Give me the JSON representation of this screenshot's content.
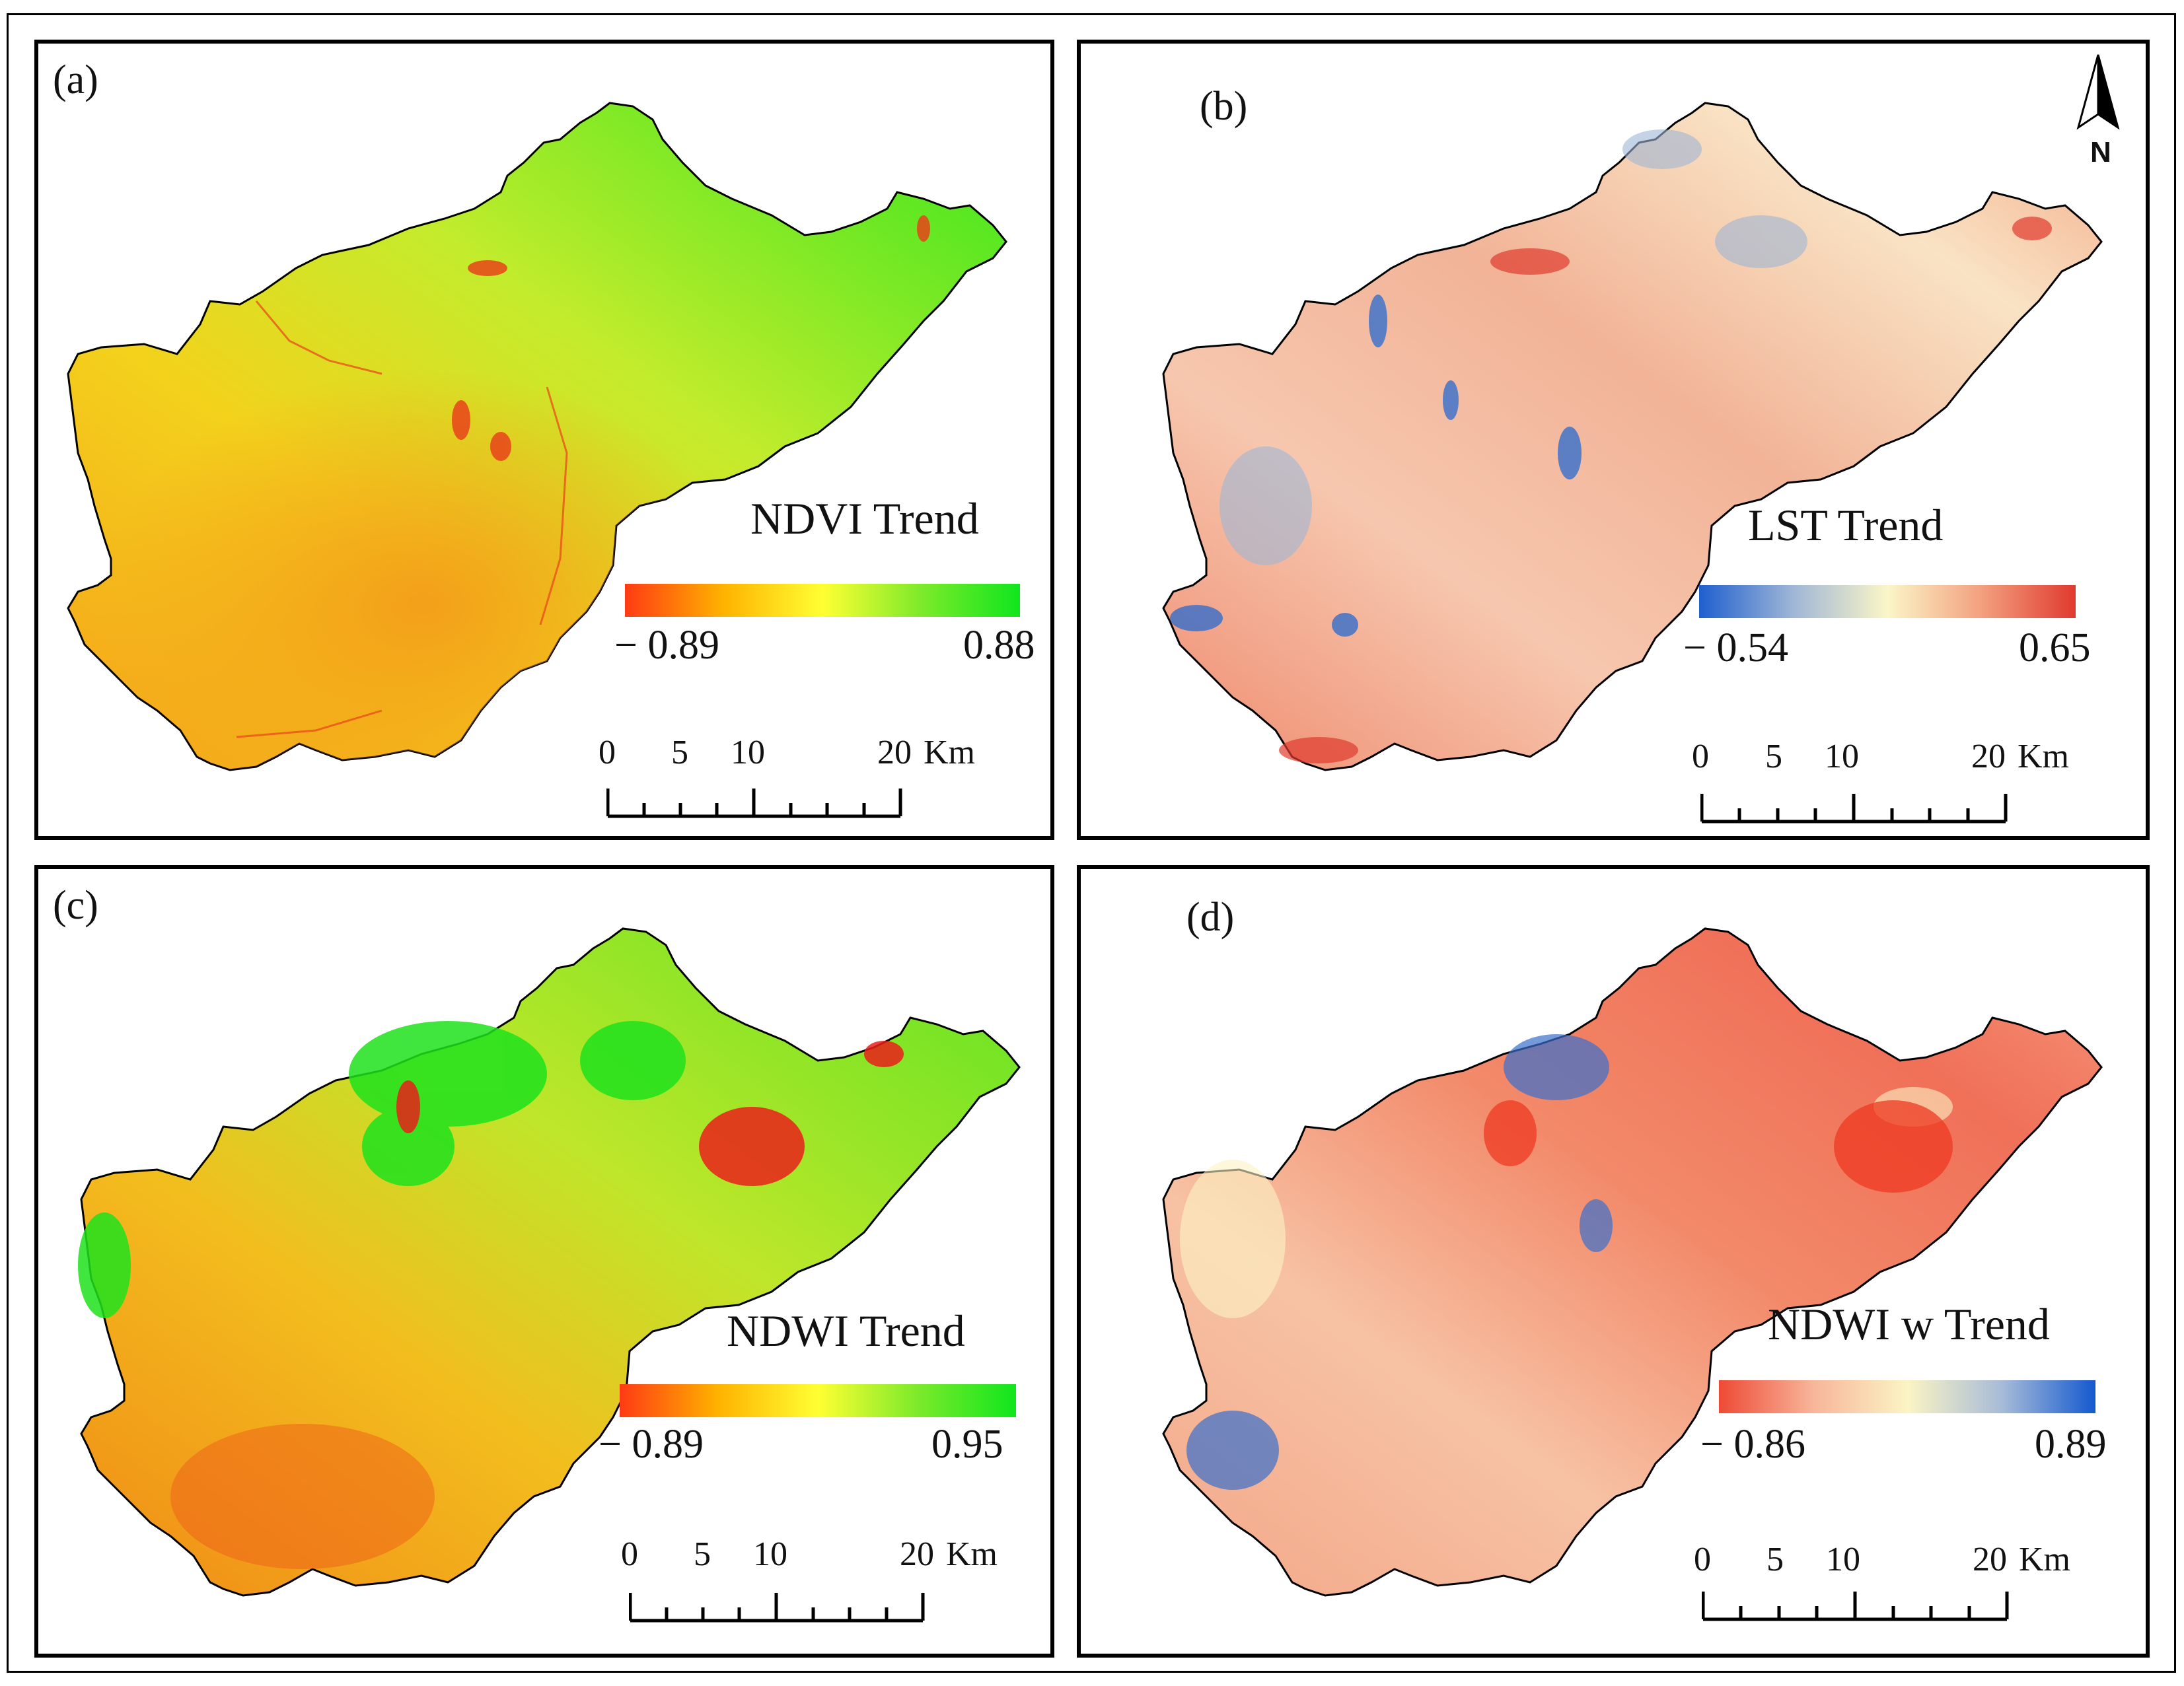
{
  "colors": {
    "frame": "#000000",
    "ndvi_ramp": [
      "#ff3b14",
      "#ffb300",
      "#ffff33",
      "#7dea2a",
      "#10e61e"
    ],
    "lst_ramp": [
      "#1f5fcf",
      "#9fb6d6",
      "#fbf6c8",
      "#f3a07f",
      "#e03a2e"
    ],
    "ndwiw_ramp": [
      "#ee4a35",
      "#f8b59a",
      "#fbf4c4",
      "#a8bcd8",
      "#1459cf"
    ]
  },
  "north_arrow": {
    "label": "N",
    "icon": "north-arrow-icon"
  },
  "panels": [
    {
      "id": "a",
      "label": "(a)",
      "legend": {
        "title": "NDVI Trend",
        "min": "− 0.89",
        "max": "0.88"
      },
      "scale": {
        "ticks": [
          "0",
          "5",
          "10",
          "20"
        ],
        "unit": "Km"
      }
    },
    {
      "id": "b",
      "label": "(b)",
      "legend": {
        "title": "LST Trend",
        "min": "− 0.54",
        "max": "0.65"
      },
      "scale": {
        "ticks": [
          "0",
          "5",
          "10",
          "20"
        ],
        "unit": "Km"
      }
    },
    {
      "id": "c",
      "label": "(c)",
      "legend": {
        "title": "NDWI Trend",
        "min": "− 0.89",
        "max": "0.95"
      },
      "scale": {
        "ticks": [
          "0",
          "5",
          "10",
          "20"
        ],
        "unit": "Km"
      }
    },
    {
      "id": "d",
      "label": "(d)",
      "legend": {
        "title": "NDWI w Trend",
        "min": "− 0.86",
        "max": "0.89"
      },
      "scale": {
        "ticks": [
          "0",
          "5",
          "10",
          "20"
        ],
        "unit": "Km"
      }
    }
  ]
}
